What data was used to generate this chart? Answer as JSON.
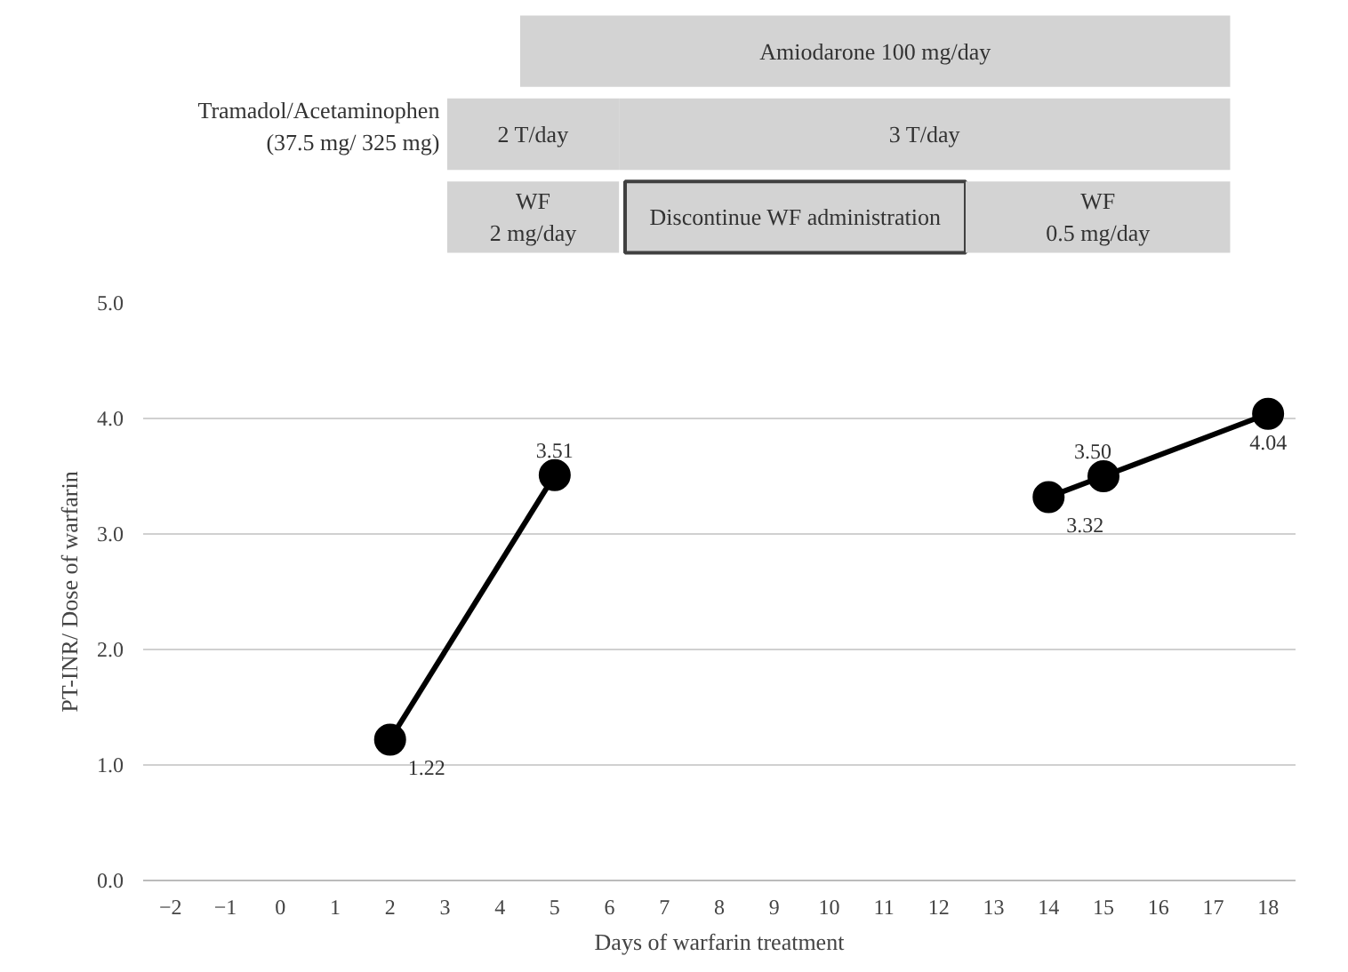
{
  "chart_data": [
    {
      "type": "other",
      "annotations": [
        "Amiodarone 100 mg/day",
        "Tramadol/Acetaminophen\n(37.5 mg/ 325 mg)",
        "2 T/day",
        "3 T/day",
        "WF\n2 mg/day",
        "Discontinue WF administration",
        "WF\n0.5 mg/day"
      ]
    },
    {
      "type": "line",
      "xlabel": "Days of warfarin treatment",
      "ylabel": "PT-INR/ Dose of warfarin",
      "xlim": [
        -2.5,
        18.5
      ],
      "xticks": [
        -2,
        -1,
        0,
        1,
        2,
        3,
        4,
        5,
        6,
        7,
        8,
        9,
        10,
        11,
        12,
        13,
        14,
        15,
        16,
        17,
        18
      ],
      "ylim": [
        0,
        5
      ],
      "yticks": [
        {
          "value": 0,
          "label": "0.0"
        },
        {
          "value": 1,
          "label": "1.0"
        },
        {
          "value": 2,
          "label": "2.0"
        },
        {
          "value": 3,
          "label": "3.0"
        },
        {
          "value": 4,
          "label": "4.0"
        },
        {
          "value": 5,
          "label": "5.0"
        }
      ],
      "grid": "y",
      "marker": "circle",
      "line_style": "solid",
      "series": [
        {
          "color": "#000000",
          "x": [
            2,
            5
          ],
          "values": [
            1.22,
            3.51
          ],
          "value_labels": [
            "1.22",
            "3.51"
          ]
        },
        {
          "color": "#000000",
          "x": [
            14,
            15,
            18
          ],
          "values": [
            3.32,
            3.5,
            4.04
          ],
          "value_labels": [
            "3.32",
            "3.50",
            "4.04"
          ]
        }
      ]
    }
  ]
}
